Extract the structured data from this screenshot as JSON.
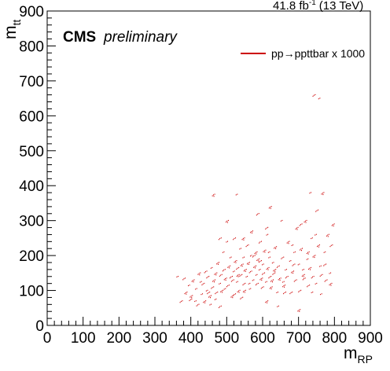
{
  "chart_data": {
    "type": "scatter",
    "xlabel": "m",
    "xlabel_sub": "RP",
    "ylabel": "m",
    "ylabel_sub": "tt",
    "xlim": [
      0,
      900
    ],
    "ylim": [
      0,
      900
    ],
    "x_ticks": [
      "0",
      "100",
      "200",
      "300",
      "400",
      "500",
      "600",
      "700",
      "800",
      "900"
    ],
    "y_ticks": [
      "0",
      "100",
      "200",
      "300",
      "400",
      "500",
      "600",
      "700",
      "800",
      "900"
    ],
    "lumi_text": "41.8 fb",
    "lumi_sup": "-1",
    "lumi_energy": "(13 TeV)",
    "cms_label": "CMS",
    "preliminary_label": "preliminary",
    "legend_position": "top-right",
    "legend_color": "#cc0000",
    "series": [
      {
        "name": "pp→ppttbar x 1000",
        "color": "#cc0000",
        "points": [
          [
            360,
            140
          ],
          [
            372,
            70
          ],
          [
            385,
            95
          ],
          [
            392,
            115
          ],
          [
            398,
            75
          ],
          [
            405,
            130
          ],
          [
            412,
            105
          ],
          [
            418,
            60
          ],
          [
            422,
            150
          ],
          [
            428,
            90
          ],
          [
            433,
            120
          ],
          [
            437,
            70
          ],
          [
            442,
            100
          ],
          [
            446,
            140
          ],
          [
            452,
            85
          ],
          [
            455,
            165
          ],
          [
            459,
            110
          ],
          [
            463,
            130
          ],
          [
            466,
            75
          ],
          [
            470,
            95
          ],
          [
            474,
            180
          ],
          [
            478,
            120
          ],
          [
            482,
            145
          ],
          [
            485,
            100
          ],
          [
            488,
            210
          ],
          [
            491,
            160
          ],
          [
            495,
            135
          ],
          [
            498,
            240
          ],
          [
            502,
            115
          ],
          [
            505,
            170
          ],
          [
            508,
            195
          ],
          [
            511,
            140
          ],
          [
            514,
            85
          ],
          [
            517,
            155
          ],
          [
            520,
            250
          ],
          [
            523,
            185
          ],
          [
            526,
            125
          ],
          [
            529,
            165
          ],
          [
            532,
            100
          ],
          [
            535,
            220
          ],
          [
            538,
            145
          ],
          [
            541,
            175
          ],
          [
            544,
            195
          ],
          [
            547,
            120
          ],
          [
            550,
            160
          ],
          [
            553,
            140
          ],
          [
            556,
            230
          ],
          [
            559,
            180
          ],
          [
            562,
            105
          ],
          [
            565,
            155
          ],
          [
            568,
            270
          ],
          [
            571,
            130
          ],
          [
            574,
            200
          ],
          [
            577,
            170
          ],
          [
            580,
            145
          ],
          [
            583,
            120
          ],
          [
            586,
            190
          ],
          [
            589,
            160
          ],
          [
            592,
            240
          ],
          [
            595,
            135
          ],
          [
            598,
            175
          ],
          [
            601,
            150
          ],
          [
            604,
            215
          ],
          [
            607,
            125
          ],
          [
            610,
            280
          ],
          [
            613,
            165
          ],
          [
            616,
            195
          ],
          [
            619,
            140
          ],
          [
            622,
            110
          ],
          [
            626,
            180
          ],
          [
            630,
            150
          ],
          [
            634,
            225
          ],
          [
            638,
            95
          ],
          [
            642,
            170
          ],
          [
            646,
            135
          ],
          [
            650,
            300
          ],
          [
            654,
            195
          ],
          [
            658,
            115
          ],
          [
            662,
            160
          ],
          [
            666,
            140
          ],
          [
            670,
            240
          ],
          [
            674,
            185
          ],
          [
            678,
            95
          ],
          [
            682,
            155
          ],
          [
            686,
            210
          ],
          [
            690,
            130
          ],
          [
            694,
            280
          ],
          [
            698,
            175
          ],
          [
            702,
            100
          ],
          [
            706,
            220
          ],
          [
            710,
            160
          ],
          [
            714,
            135
          ],
          [
            718,
            300
          ],
          [
            722,
            190
          ],
          [
            726,
            115
          ],
          [
            730,
            165
          ],
          [
            734,
            250
          ],
          [
            738,
            140
          ],
          [
            742,
            200
          ],
          [
            746,
            120
          ],
          [
            750,
            330
          ],
          [
            754,
            230
          ],
          [
            758,
            170
          ],
          [
            762,
            145
          ],
          [
            766,
            380
          ],
          [
            770,
            210
          ],
          [
            775,
            130
          ],
          [
            780,
            260
          ],
          [
            785,
            150
          ],
          [
            790,
            230
          ],
          [
            795,
            290
          ],
          [
            755,
            650
          ],
          [
            742,
            660
          ],
          [
            462,
            375
          ],
          [
            525,
            375
          ],
          [
            585,
            320
          ],
          [
            620,
            340
          ],
          [
            452,
            60
          ],
          [
            540,
            80
          ],
          [
            610,
            70
          ],
          [
            640,
            55
          ],
          [
            520,
            90
          ],
          [
            700,
            45
          ],
          [
            760,
            90
          ],
          [
            480,
            55
          ],
          [
            580,
            210
          ],
          [
            610,
            260
          ],
          [
            660,
            95
          ],
          [
            500,
            300
          ],
          [
            730,
            380
          ],
          [
            380,
            135
          ],
          [
            400,
            85
          ],
          [
            425,
            125
          ],
          [
            448,
            95
          ],
          [
            468,
            150
          ],
          [
            492,
            105
          ],
          [
            515,
            130
          ],
          [
            548,
            100
          ],
          [
            565,
            200
          ],
          [
            598,
            110
          ],
          [
            632,
            160
          ],
          [
            655,
            125
          ],
          [
            685,
            175
          ],
          [
            712,
            145
          ],
          [
            735,
            95
          ],
          [
            772,
            175
          ],
          [
            788,
            120
          ],
          [
            410,
            70
          ],
          [
            440,
            155
          ],
          [
            530,
            145
          ],
          [
            560,
            120
          ],
          [
            592,
            185
          ],
          [
            625,
            130
          ],
          [
            680,
            230
          ],
          [
            705,
            290
          ],
          [
            725,
            210
          ],
          [
            745,
            260
          ],
          [
            480,
            250
          ],
          [
            545,
            250
          ],
          [
            615,
            210
          ]
        ]
      }
    ]
  }
}
